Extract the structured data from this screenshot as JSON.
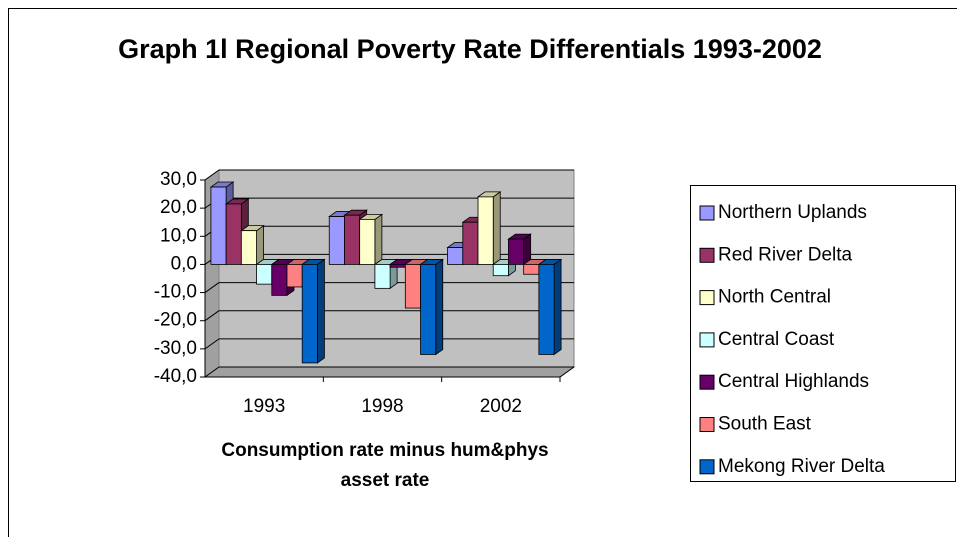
{
  "chart_data": {
    "type": "bar",
    "title": "Graph 1l Regional Poverty Rate Differentials 1993-2002",
    "x_label": "Consumption rate minus hum&phys asset rate",
    "categories": [
      "1993",
      "1998",
      "2002"
    ],
    "series": [
      {
        "name": "Northern Uplands",
        "color": "#9999ff",
        "values": [
          27.5,
          17,
          6
        ]
      },
      {
        "name": "Red River Delta",
        "color": "#993366",
        "values": [
          21.5,
          17.5,
          15
        ]
      },
      {
        "name": "North Central",
        "color": "#ffffcc",
        "values": [
          12,
          16,
          24
        ]
      },
      {
        "name": "Central Coast",
        "color": "#ccffff",
        "values": [
          -7,
          -8.5,
          -4
        ]
      },
      {
        "name": "Central Highlands",
        "color": "#660066",
        "values": [
          -11,
          -1,
          9
        ]
      },
      {
        "name": "South East",
        "color": "#ff8080",
        "values": [
          -8,
          -15.5,
          -3.5
        ]
      },
      {
        "name": "Mekong River Delta",
        "color": "#0066cc",
        "values": [
          -35,
          -32,
          -32
        ]
      }
    ],
    "ylim": [
      -40,
      30
    ],
    "yticks": [
      {
        "value": -40,
        "label": "-40,0"
      },
      {
        "value": -30,
        "label": "-30,0"
      },
      {
        "value": -20,
        "label": "-20,0"
      },
      {
        "value": -10,
        "label": "-10,0"
      },
      {
        "value": 0,
        "label": "0,0"
      },
      {
        "value": 10,
        "label": "10,0"
      },
      {
        "value": 20,
        "label": "20,0"
      },
      {
        "value": 30,
        "label": "30,0"
      }
    ],
    "grid": true,
    "legend": "right"
  }
}
